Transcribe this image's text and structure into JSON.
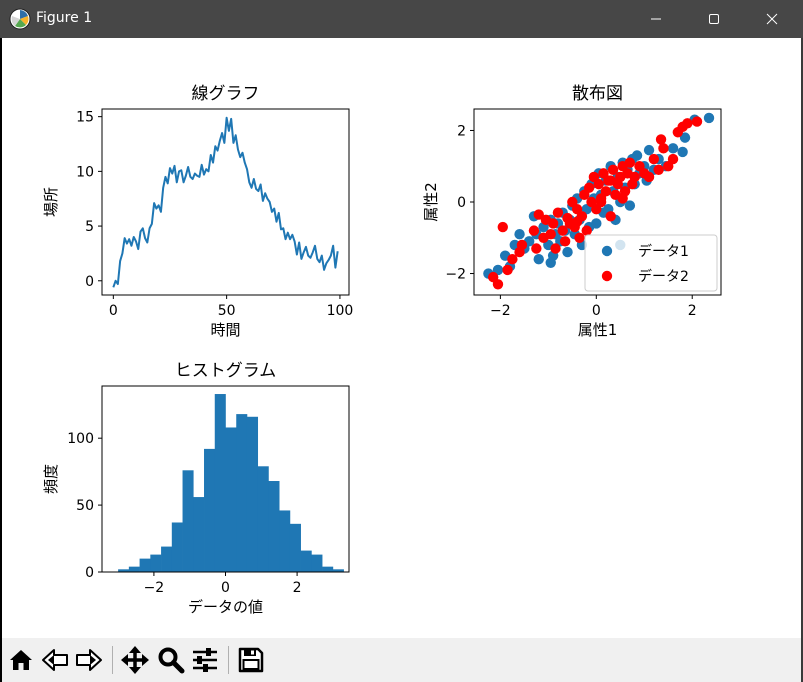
{
  "window": {
    "title": "Figure 1",
    "app_icon": "matplotlib-icon",
    "controls": {
      "minimize": "minimize-icon",
      "maximize": "maximize-icon",
      "close": "close-icon"
    }
  },
  "toolbar": {
    "items": [
      {
        "name": "home-button",
        "icon": "home-icon"
      },
      {
        "name": "back-button",
        "icon": "back-arrow-icon"
      },
      {
        "name": "forward-button",
        "icon": "forward-arrow-icon"
      },
      {
        "name": "pan-button",
        "icon": "move-icon"
      },
      {
        "name": "zoom-button",
        "icon": "zoom-icon"
      },
      {
        "name": "configure-subplots-button",
        "icon": "sliders-icon"
      },
      {
        "name": "save-button",
        "icon": "save-icon"
      }
    ]
  },
  "colors": {
    "blue": "#1f77b4",
    "red": "#ff0000",
    "titlebar": "#474747",
    "toolbar": "#f0f0f0"
  },
  "chart_data": [
    {
      "type": "line",
      "title": "線グラフ",
      "xlabel": "時間",
      "ylabel": "場所",
      "xlim": [
        -5,
        104
      ],
      "ylim": [
        -1.3,
        15.7
      ],
      "xticks": [
        0,
        50,
        100
      ],
      "yticks": [
        0,
        5,
        10,
        15
      ],
      "grid": false,
      "series": [
        {
          "color": "#1f77b4",
          "x": [
            0,
            1,
            2,
            3,
            4,
            5,
            6,
            7,
            8,
            9,
            10,
            11,
            12,
            13,
            14,
            15,
            16,
            17,
            18,
            19,
            20,
            21,
            22,
            23,
            24,
            25,
            26,
            27,
            28,
            29,
            30,
            31,
            32,
            33,
            34,
            35,
            36,
            37,
            38,
            39,
            40,
            41,
            42,
            43,
            44,
            45,
            46,
            47,
            48,
            49,
            50,
            51,
            52,
            53,
            54,
            55,
            56,
            57,
            58,
            59,
            60,
            61,
            62,
            63,
            64,
            65,
            66,
            67,
            68,
            69,
            70,
            71,
            72,
            73,
            74,
            75,
            76,
            77,
            78,
            79,
            80,
            81,
            82,
            83,
            84,
            85,
            86,
            87,
            88,
            89,
            90,
            91,
            92,
            93,
            94,
            95,
            96,
            97,
            98,
            99
          ],
          "y": [
            -0.6,
            0.0,
            -0.3,
            1.8,
            2.5,
            3.9,
            3.4,
            3.8,
            3.2,
            4.0,
            3.6,
            2.9,
            4.5,
            4.8,
            3.9,
            3.5,
            4.8,
            5.2,
            7.1,
            6.6,
            6.9,
            6.3,
            8.5,
            9.5,
            8.9,
            10.3,
            9.8,
            10.5,
            9.0,
            10.0,
            10.1,
            9.0,
            9.6,
            10.4,
            9.5,
            9.3,
            9.8,
            9.6,
            9.5,
            10.6,
            9.7,
            10.2,
            10.0,
            11.5,
            10.8,
            12.3,
            11.9,
            12.8,
            13.5,
            12.6,
            14.9,
            13.7,
            14.8,
            12.6,
            13.3,
            12.0,
            11.3,
            11.7,
            10.8,
            10.2,
            9.0,
            8.5,
            9.3,
            8.4,
            8.2,
            8.8,
            7.3,
            8.0,
            7.5,
            7.2,
            6.3,
            6.6,
            5.4,
            6.2,
            4.7,
            4.8,
            3.8,
            4.4,
            3.8,
            4.2,
            3.6,
            2.4,
            3.5,
            2.0,
            2.6,
            3.1,
            2.3,
            2.1,
            2.6,
            3.2,
            2.0,
            1.7,
            2.3,
            1.0,
            1.6,
            1.9,
            2.3,
            3.2,
            1.2,
            2.7
          ]
        }
      ]
    },
    {
      "type": "scatter",
      "title": "散布図",
      "xlabel": "属性1",
      "ylabel": "属性2",
      "xlim": [
        -2.55,
        2.6
      ],
      "ylim": [
        -2.6,
        2.6
      ],
      "xticks": [
        -2,
        0,
        2
      ],
      "yticks": [
        -2,
        0,
        2
      ],
      "grid": false,
      "legend": "lower-right",
      "series": [
        {
          "name": "データ1",
          "color": "#1f77b4",
          "points": [
            [
              -2.25,
              -2.0
            ],
            [
              -2.05,
              -1.9
            ],
            [
              -1.9,
              -1.5
            ],
            [
              -1.8,
              -1.8
            ],
            [
              -1.7,
              -1.2
            ],
            [
              -1.6,
              -0.9
            ],
            [
              -1.5,
              -1.3
            ],
            [
              -1.4,
              -1.1
            ],
            [
              -1.25,
              -0.9
            ],
            [
              -1.2,
              -1.6
            ],
            [
              -1.1,
              -0.7
            ],
            [
              -1.0,
              -1.2
            ],
            [
              -0.95,
              -0.5
            ],
            [
              -0.9,
              -1.5
            ],
            [
              -0.85,
              -0.9
            ],
            [
              -0.8,
              -0.6
            ],
            [
              -0.75,
              -1.1
            ],
            [
              -0.7,
              -0.3
            ],
            [
              -0.65,
              -0.8
            ],
            [
              -0.6,
              -1.4
            ],
            [
              -0.55,
              -0.5
            ],
            [
              -0.5,
              -0.1
            ],
            [
              -0.45,
              -0.9
            ],
            [
              -0.4,
              0.1
            ],
            [
              -0.35,
              -0.5
            ],
            [
              -0.3,
              -1.2
            ],
            [
              -0.25,
              0.3
            ],
            [
              -0.2,
              -0.2
            ],
            [
              -0.15,
              -0.7
            ],
            [
              -0.1,
              0.5
            ],
            [
              -0.05,
              0.1
            ],
            [
              0.0,
              -0.6
            ],
            [
              0.05,
              0.8
            ],
            [
              0.1,
              0.2
            ],
            [
              0.15,
              -0.3
            ],
            [
              0.2,
              0.6
            ],
            [
              0.25,
              -0.2
            ],
            [
              0.3,
              1.0
            ],
            [
              0.35,
              0.3
            ],
            [
              0.4,
              -0.5
            ],
            [
              0.45,
              0.7
            ],
            [
              0.5,
              0.0
            ],
            [
              0.55,
              1.1
            ],
            [
              0.6,
              0.4
            ],
            [
              0.65,
              0.9
            ],
            [
              0.7,
              -0.1
            ],
            [
              0.75,
              1.2
            ],
            [
              0.8,
              0.5
            ],
            [
              0.85,
              1.3
            ],
            [
              0.9,
              0.8
            ],
            [
              1.0,
              1.0
            ],
            [
              1.05,
              0.6
            ],
            [
              1.1,
              1.45
            ],
            [
              1.2,
              0.9
            ],
            [
              1.3,
              1.2
            ],
            [
              1.45,
              1.0
            ],
            [
              1.6,
              1.5
            ],
            [
              1.8,
              1.4
            ],
            [
              1.85,
              1.8
            ],
            [
              2.05,
              2.3
            ],
            [
              2.35,
              2.35
            ],
            [
              -1.3,
              -0.4
            ],
            [
              -0.95,
              -1.7
            ],
            [
              0.5,
              -1.2
            ]
          ]
        },
        {
          "name": "データ2",
          "color": "#ff0000",
          "points": [
            [
              -2.15,
              -2.1
            ],
            [
              -2.05,
              -2.3
            ],
            [
              -1.95,
              -0.7
            ],
            [
              -1.85,
              -1.9
            ],
            [
              -1.75,
              -1.6
            ],
            [
              -1.6,
              -1.4
            ],
            [
              -1.55,
              -1.2
            ],
            [
              -1.3,
              -0.8
            ],
            [
              -1.25,
              -1.3
            ],
            [
              -1.2,
              -0.35
            ],
            [
              -1.1,
              -1.0
            ],
            [
              -1.05,
              -0.5
            ],
            [
              -0.95,
              -0.9
            ],
            [
              -0.9,
              -0.6
            ],
            [
              -0.85,
              -1.3
            ],
            [
              -0.8,
              -0.3
            ],
            [
              -0.7,
              -0.8
            ],
            [
              -0.65,
              -1.1
            ],
            [
              -0.6,
              -0.45
            ],
            [
              -0.55,
              -0.6
            ],
            [
              -0.5,
              0.0
            ],
            [
              -0.45,
              -0.7
            ],
            [
              -0.4,
              -0.2
            ],
            [
              -0.35,
              -1.0
            ],
            [
              -0.3,
              -0.4
            ],
            [
              -0.25,
              0.2
            ],
            [
              -0.2,
              -0.8
            ],
            [
              -0.15,
              0.4
            ],
            [
              -0.1,
              0.0
            ],
            [
              -0.05,
              0.7
            ],
            [
              0.0,
              -0.2
            ],
            [
              0.05,
              0.5
            ],
            [
              0.1,
              0.1
            ],
            [
              0.15,
              0.8
            ],
            [
              0.2,
              0.3
            ],
            [
              0.25,
              0.6
            ],
            [
              0.3,
              -0.4
            ],
            [
              0.35,
              0.9
            ],
            [
              0.4,
              0.2
            ],
            [
              0.45,
              0.5
            ],
            [
              0.5,
              0.7
            ],
            [
              0.55,
              1.0
            ],
            [
              0.6,
              0.3
            ],
            [
              0.65,
              0.8
            ],
            [
              0.7,
              1.1
            ],
            [
              0.75,
              0.5
            ],
            [
              0.8,
              0.7
            ],
            [
              0.9,
              1.0
            ],
            [
              1.0,
              0.8
            ],
            [
              1.1,
              0.7
            ],
            [
              1.2,
              1.2
            ],
            [
              1.3,
              0.9
            ],
            [
              1.35,
              1.75
            ],
            [
              1.4,
              1.5
            ],
            [
              1.5,
              1.0
            ],
            [
              1.6,
              1.2
            ],
            [
              1.7,
              1.95
            ],
            [
              1.8,
              2.1
            ],
            [
              1.9,
              2.2
            ],
            [
              2.1,
              2.25
            ],
            [
              0.1,
              0.0
            ],
            [
              0.3,
              0.6
            ],
            [
              0.55,
              0.1
            ],
            [
              -0.4,
              -0.55
            ]
          ]
        }
      ]
    },
    {
      "type": "bar",
      "title": "ヒストグラム",
      "xlabel": "データの値",
      "ylabel": "頻度",
      "xlim": [
        -3.45,
        3.45
      ],
      "ylim": [
        0,
        139
      ],
      "xticks": [
        -2,
        0,
        2
      ],
      "yticks": [
        0,
        50,
        100
      ],
      "grid": false,
      "bin_edges": [
        -3.0,
        -2.7,
        -2.4,
        -2.1,
        -1.8,
        -1.5,
        -1.2,
        -0.9,
        -0.6,
        -0.3,
        0.0,
        0.3,
        0.6,
        0.9,
        1.2,
        1.5,
        1.8,
        2.1,
        2.4,
        2.7,
        3.0,
        3.3
      ],
      "values": [
        2,
        4,
        10,
        13,
        19,
        37,
        76,
        56,
        92,
        133,
        108,
        118,
        116,
        79,
        68,
        46,
        36,
        16,
        13,
        4,
        2
      ]
    }
  ]
}
